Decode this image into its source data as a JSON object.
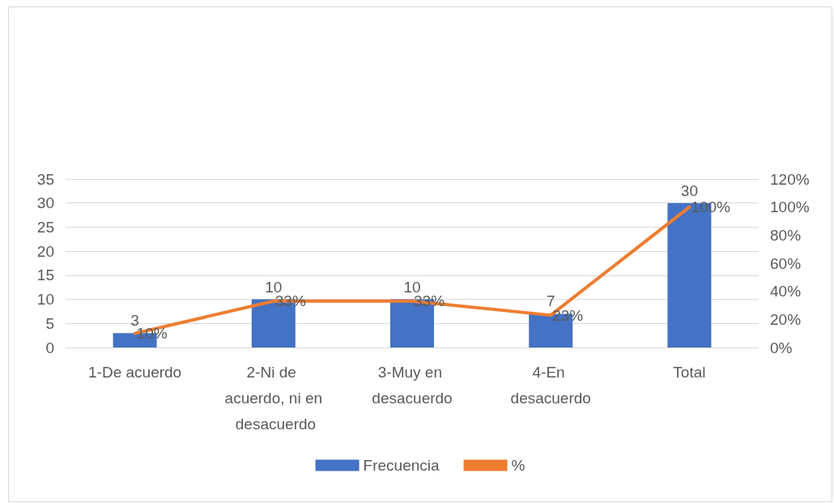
{
  "chart_data": {
    "type": "bar",
    "categories": [
      "1-De acuerdo",
      "2-Ni de acuerdo, ni en desacuerdo",
      "3-Muy en desacuerdo",
      "4-En desacuerdo",
      "Total"
    ],
    "series": [
      {
        "name": "Frecuencia",
        "color": "#4472c4",
        "values": [
          3,
          10,
          10,
          7,
          30
        ],
        "value_labels": [
          "3",
          "10",
          "10",
          "7",
          "30"
        ]
      },
      {
        "name": "%",
        "type": "line",
        "axis": "y2",
        "color": "#ed7d31",
        "values": [
          10,
          33,
          33,
          23,
          100
        ],
        "value_labels": [
          "10%",
          "33%",
          "33%",
          "23%",
          "100%"
        ]
      }
    ],
    "ylim": [
      0,
      35
    ],
    "yticks": [
      0,
      5,
      10,
      15,
      20,
      25,
      30,
      35
    ],
    "y2lim": [
      0,
      120
    ],
    "y2ticks": [
      {
        "value": 0,
        "label": "0%"
      },
      {
        "value": 20,
        "label": "20%"
      },
      {
        "value": 40,
        "label": "40%"
      },
      {
        "value": 60,
        "label": "60%"
      },
      {
        "value": 80,
        "label": "80%"
      },
      {
        "value": 100,
        "label": "100%"
      },
      {
        "value": 120,
        "label": "120%"
      }
    ],
    "grid": "y",
    "legend": "bottom",
    "marker": "none",
    "line_style": "solid"
  }
}
